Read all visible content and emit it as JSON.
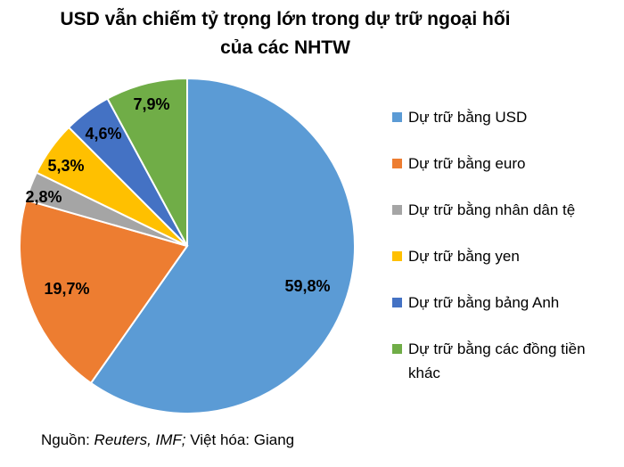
{
  "title": {
    "line1": "USD vẫn chiếm tỷ trọng lớn trong dự trữ ngoại hối",
    "line2": "của các NHTW"
  },
  "source": {
    "prefix": "Nguồn: ",
    "italic": "Reuters, IMF;",
    "suffix": " Việt hóa: Giang"
  },
  "chart_data": {
    "type": "pie",
    "title": "USD vẫn chiếm tỷ trọng lớn trong dự trữ ngoại hối của các NHTW",
    "legend_position": "right",
    "slices": [
      {
        "name": "Dự trữ bằng USD",
        "value": 59.8,
        "label": "59,8%",
        "color": "#5B9BD5"
      },
      {
        "name": "Dự trữ bằng euro",
        "value": 19.7,
        "label": "19,7%",
        "color": "#ED7D31"
      },
      {
        "name": "Dự trữ bằng nhân dân tệ",
        "value": 2.8,
        "label": "2,8%",
        "color": "#A5A5A5"
      },
      {
        "name": "Dự trữ bằng yen",
        "value": 5.3,
        "label": "5,3%",
        "color": "#FFC000"
      },
      {
        "name": "Dự trữ bằng bảng Anh",
        "value": 4.6,
        "label": "4,6%",
        "color": "#4472C4"
      },
      {
        "name": "Dự trữ bằng các đồng tiền khác",
        "value": 7.9,
        "label": "7,9%",
        "color": "#70AD47"
      }
    ]
  }
}
